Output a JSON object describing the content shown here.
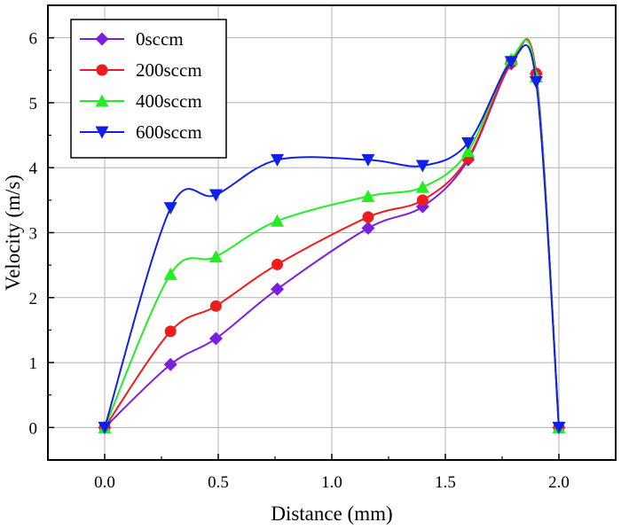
{
  "chart_data": {
    "type": "line",
    "title": "",
    "xlabel": "Distance (mm)",
    "ylabel": "Velocity (m/s)",
    "xlim": [
      -0.25,
      2.25
    ],
    "ylim": [
      -0.5,
      6.5
    ],
    "xticks": [
      "0.0",
      "0.5",
      "1.0",
      "1.5",
      "2.0"
    ],
    "yticks": [
      "0",
      "1",
      "2",
      "3",
      "4",
      "5",
      "6"
    ],
    "grid": true,
    "legend_position": "top-left",
    "series": [
      {
        "name": "0sccm",
        "color": "#7a1fe0",
        "marker": "diamond",
        "x": [
          0.0,
          0.29,
          0.49,
          0.76,
          1.16,
          1.4,
          1.6,
          1.79,
          1.9,
          2.0
        ],
        "y": [
          0.0,
          0.97,
          1.37,
          2.13,
          3.07,
          3.4,
          4.12,
          5.6,
          5.45,
          0.0
        ]
      },
      {
        "name": "200sccm",
        "color": "#ee1c1c",
        "marker": "circle",
        "x": [
          0.0,
          0.29,
          0.49,
          0.76,
          1.16,
          1.4,
          1.6,
          1.79,
          1.9,
          2.0
        ],
        "y": [
          0.0,
          1.48,
          1.87,
          2.51,
          3.24,
          3.5,
          4.15,
          5.62,
          5.45,
          0.0
        ]
      },
      {
        "name": "400sccm",
        "color": "#22ee22",
        "marker": "triangle-up",
        "x": [
          0.0,
          0.29,
          0.49,
          0.76,
          1.16,
          1.4,
          1.6,
          1.79,
          1.9,
          2.0
        ],
        "y": [
          0.0,
          2.36,
          2.63,
          3.18,
          3.56,
          3.7,
          4.25,
          5.67,
          5.4,
          0.0
        ]
      },
      {
        "name": "600sccm",
        "color": "#1020e8",
        "marker": "triangle-down",
        "x": [
          0.0,
          0.29,
          0.49,
          0.76,
          1.16,
          1.4,
          1.6,
          1.79,
          1.9,
          2.0
        ],
        "y": [
          0.0,
          3.38,
          3.58,
          4.12,
          4.12,
          4.03,
          4.38,
          5.63,
          5.32,
          0.0
        ]
      }
    ]
  }
}
